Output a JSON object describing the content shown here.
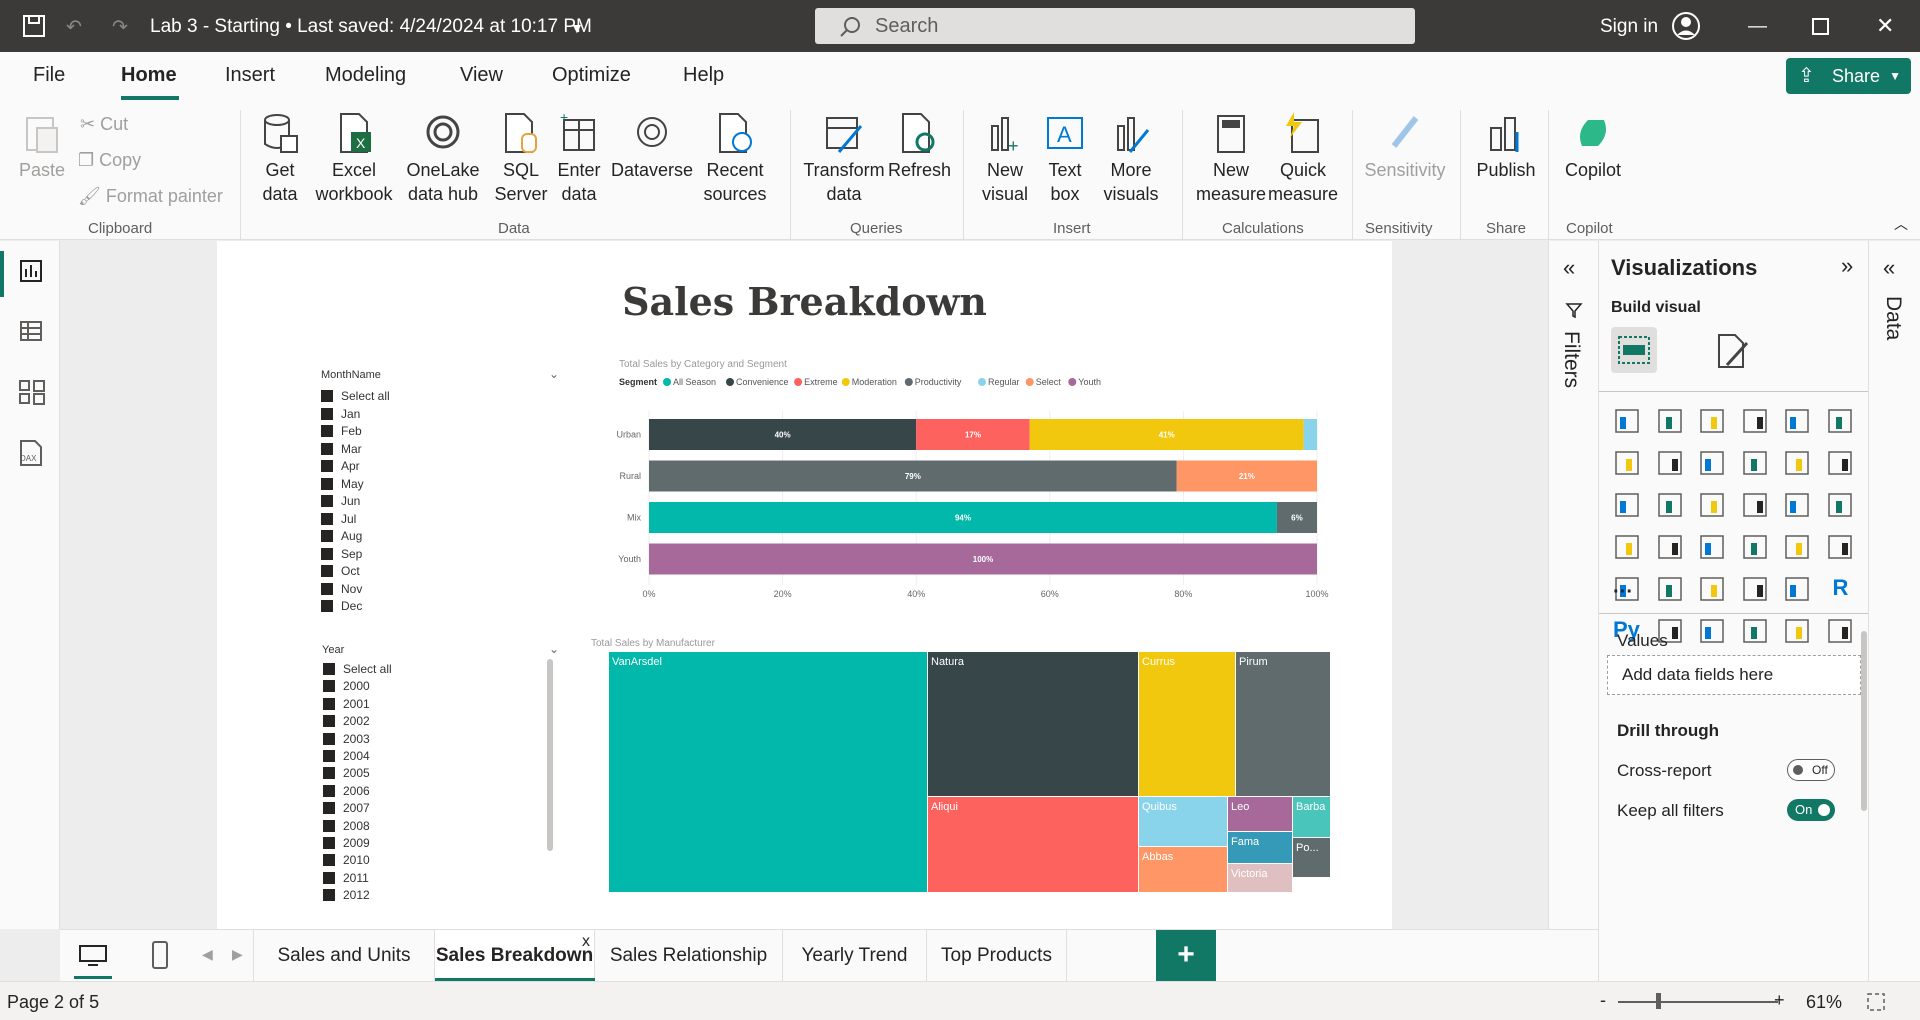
{
  "titlebar": {
    "doc_title": "Lab 3 - Starting • Last saved: 4/24/2024 at 10:17 PM",
    "search_placeholder": "Search",
    "sign_in": "Sign in"
  },
  "menu": {
    "items": [
      "File",
      "Home",
      "Insert",
      "Modeling",
      "View",
      "Optimize",
      "Help"
    ],
    "share": "Share"
  },
  "ribbon": {
    "clipboard": {
      "paste": "Paste",
      "cut": "Cut",
      "copy": "Copy",
      "format_painter": "Format painter",
      "group": "Clipboard"
    },
    "data": {
      "get_data": "Get data",
      "excel": "Excel workbook",
      "onelake": "OneLake data hub",
      "sql": "SQL Server",
      "enter_data": "Enter data",
      "dataverse": "Dataverse",
      "recent": "Recent sources",
      "group": "Data"
    },
    "queries": {
      "transform": "Transform data",
      "refresh": "Refresh",
      "group": "Queries"
    },
    "insert": {
      "new_visual": "New visual",
      "text_box": "Text box",
      "more_visuals": "More visuals",
      "group": "Insert"
    },
    "calculations": {
      "new_measure": "New measure",
      "quick_measure": "Quick measure",
      "group": "Calculations"
    },
    "sensitivity": {
      "label": "Sensitivity",
      "group": "Sensitivity"
    },
    "share": {
      "publish": "Publish",
      "group": "Share"
    },
    "copilot": {
      "label": "Copilot",
      "group": "Copilot"
    }
  },
  "report": {
    "title": "Sales Breakdown",
    "month_slicer": {
      "header": "MonthName",
      "items": [
        "Select all",
        "Jan",
        "Feb",
        "Mar",
        "Apr",
        "May",
        "Jun",
        "Jul",
        "Aug",
        "Sep",
        "Oct",
        "Nov",
        "Dec"
      ]
    },
    "year_slicer": {
      "header": "Year",
      "items": [
        "Select all",
        "2000",
        "2001",
        "2002",
        "2003",
        "2004",
        "2005",
        "2006",
        "2007",
        "2008",
        "2009",
        "2010",
        "2011",
        "2012"
      ]
    },
    "treemap_title": "Total Sales by Manufacturer"
  },
  "chart_data": {
    "type": "bar",
    "title": "Total Sales by Category and Segment",
    "legend_title": "Segment",
    "legend": [
      {
        "name": "All Season",
        "color": "#01b8aa"
      },
      {
        "name": "Convenience",
        "color": "#374649"
      },
      {
        "name": "Extreme",
        "color": "#fd625e"
      },
      {
        "name": "Moderation",
        "color": "#f2c80f"
      },
      {
        "name": "Productivity",
        "color": "#5f6b6d"
      },
      {
        "name": "Regular",
        "color": "#8ad4eb"
      },
      {
        "name": "Select",
        "color": "#fe9666"
      },
      {
        "name": "Youth",
        "color": "#a66999"
      }
    ],
    "categories": [
      "Urban",
      "Rural",
      "Mix",
      "Youth"
    ],
    "rows": [
      [
        {
          "segment": "Convenience",
          "value": 40,
          "label": "40%"
        },
        {
          "segment": "Extreme",
          "value": 17,
          "label": "17%"
        },
        {
          "segment": "Moderation",
          "value": 41,
          "label": "41%"
        },
        {
          "segment": "Regular",
          "value": 2,
          "label": ""
        }
      ],
      [
        {
          "segment": "Productivity",
          "value": 79,
          "label": "79%"
        },
        {
          "segment": "Select",
          "value": 21,
          "label": "21%"
        }
      ],
      [
        {
          "segment": "All Season",
          "value": 94,
          "label": "94%"
        },
        {
          "segment": "Productivity",
          "value": 6,
          "label": "6%"
        }
      ],
      [
        {
          "segment": "Youth",
          "value": 100,
          "label": "100%"
        }
      ]
    ],
    "x_ticks": [
      "0%",
      "20%",
      "40%",
      "60%",
      "80%",
      "100%"
    ]
  },
  "treemap": [
    {
      "name": "VanArsdel",
      "color": "#01b8aa"
    },
    {
      "name": "Natura",
      "color": "#374649"
    },
    {
      "name": "Currus",
      "color": "#f2c80f"
    },
    {
      "name": "Pirum",
      "color": "#5f6b6d"
    },
    {
      "name": "Aliqui",
      "color": "#fd625e"
    },
    {
      "name": "Quibus",
      "color": "#8ad4eb"
    },
    {
      "name": "Abbas",
      "color": "#fe9666"
    },
    {
      "name": "Leo",
      "color": "#a66999"
    },
    {
      "name": "Fama",
      "color": "#3599b8"
    },
    {
      "name": "Victoria",
      "color": "#dfbfbf"
    },
    {
      "name": "Barba",
      "color": "#4ac5bb"
    },
    {
      "name": "Po...",
      "color": "#5f6b6d"
    }
  ],
  "filters_label": "Filters",
  "viz": {
    "title": "Visualizations",
    "build_visual": "Build visual",
    "values": "Values",
    "add_fields": "Add data fields here",
    "drill_through": "Drill through",
    "cross_report": "Cross-report",
    "cross_report_state": "Off",
    "keep_filters": "Keep all filters",
    "keep_filters_state": "On",
    "more": "···",
    "r": "R",
    "py": "Py"
  },
  "data_label": "Data",
  "tabs": [
    "Sales and Units",
    "Sales Breakdown",
    "Sales Relationship",
    "Yearly Trend",
    "Top Products"
  ],
  "tab_close": "x",
  "add_tab": "+",
  "status": {
    "page": "Page 2 of 5",
    "zoom": "61%",
    "minus": "-",
    "plus": "+"
  }
}
